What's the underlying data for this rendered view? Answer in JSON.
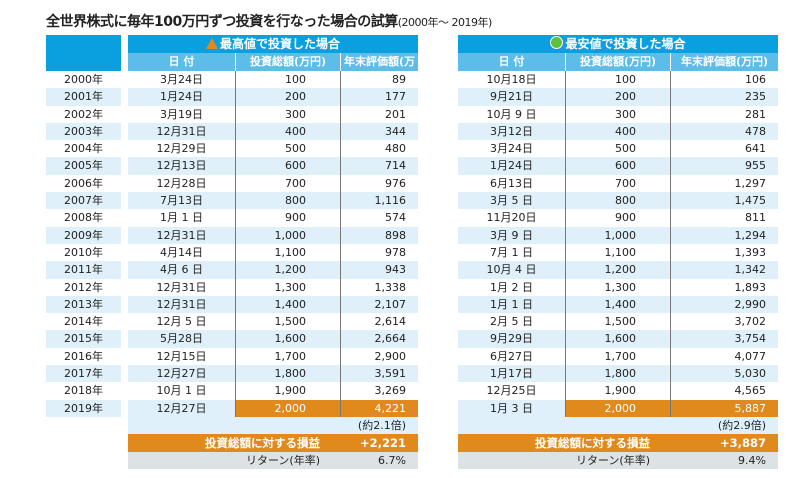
{
  "title": "全世界株式に毎年100万円ずつ投資を行なった場合の試算",
  "subtitle": "(2000年〜 2019年)",
  "years": [
    "2000年",
    "2001年",
    "2002年",
    "2003年",
    "2004年",
    "2005年",
    "2006年",
    "2007年",
    "2008年",
    "2009年",
    "2010年",
    "2011年",
    "2012年",
    "2013年",
    "2014年",
    "2015年",
    "2016年",
    "2017年",
    "2018年",
    "2019年"
  ],
  "headers": {
    "date": "日 付",
    "invest": "投資総額(万円)",
    "value": "年末評価額(万円)"
  },
  "tables": [
    {
      "title": "最高値で投資した場合",
      "icon": "triangle-icon",
      "dates": [
        "3月24日",
        "1月24日",
        "3月19日",
        "12月31日",
        "12月29日",
        "12月13日",
        "12月28日",
        "7月13日",
        "1月 1 日",
        "12月31日",
        "4月14日",
        "4月 6 日",
        "12月31日",
        "12月31日",
        "12月 5 日",
        "5月28日",
        "12月15日",
        "12月27日",
        "10月 1 日",
        "12月27日"
      ],
      "invest": [
        "100",
        "200",
        "300",
        "400",
        "500",
        "600",
        "700",
        "800",
        "900",
        "1,000",
        "1,100",
        "1,200",
        "1,300",
        "1,400",
        "1,500",
        "1,600",
        "1,700",
        "1,800",
        "1,900",
        "2,000"
      ],
      "value": [
        "89",
        "177",
        "201",
        "344",
        "480",
        "714",
        "976",
        "1,116",
        "574",
        "898",
        "978",
        "943",
        "1,338",
        "2,107",
        "2,614",
        "2,664",
        "2,900",
        "3,591",
        "3,269",
        "4,221"
      ],
      "ratio": "(約2.1倍)",
      "profit_label": "投資総額に対する損益",
      "profit": "+2,221",
      "return_label": "リターン(年率)",
      "return": "6.7%"
    },
    {
      "title": "最安値で投資した場合",
      "icon": "circle-icon",
      "dates": [
        "10月18日",
        "9月21日",
        "10月 9 日",
        "3月12日",
        "3月24日",
        "1月24日",
        "6月13日",
        "3月 5 日",
        "11月20日",
        "3月 9 日",
        "7月 1 日",
        "10月 4 日",
        "1月 2 日",
        "1月 1 日",
        "2月 5 日",
        "9月29日",
        "6月27日",
        "1月17日",
        "12月25日",
        "1月 3 日"
      ],
      "invest": [
        "100",
        "200",
        "300",
        "400",
        "500",
        "600",
        "700",
        "800",
        "900",
        "1,000",
        "1,100",
        "1,200",
        "1,300",
        "1,400",
        "1,500",
        "1,600",
        "1,700",
        "1,800",
        "1,900",
        "2,000"
      ],
      "value": [
        "106",
        "235",
        "281",
        "478",
        "641",
        "955",
        "1,297",
        "1,475",
        "811",
        "1,294",
        "1,393",
        "1,342",
        "1,893",
        "2,990",
        "3,702",
        "3,754",
        "4,077",
        "5,030",
        "4,565",
        "5,887"
      ],
      "ratio": "(約2.9倍)",
      "profit_label": "投資総額に対する損益",
      "profit": "+3,887",
      "return_label": "リターン(年率)",
      "return": "9.4%"
    }
  ]
}
